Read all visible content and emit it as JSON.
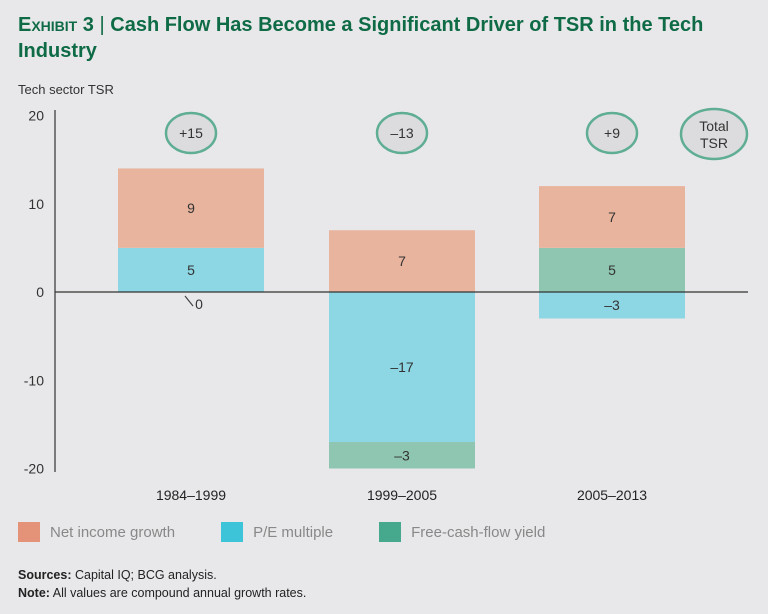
{
  "title": {
    "exhibit": "Exhibit 3",
    "text": "Cash Flow Has Become a Significant Driver of TSR in the Tech Industry"
  },
  "chart_data": {
    "type": "bar",
    "stacked": true,
    "ylabel": "Tech sector TSR",
    "ylim": [
      -20,
      20
    ],
    "yticks": [
      20,
      10,
      0,
      -10,
      -20
    ],
    "categories": [
      "1984–1999",
      "1999–2005",
      "2005–2013"
    ],
    "series": [
      {
        "name": "Net income growth",
        "color": "#e9b49e",
        "legend_color": "#e59378",
        "values": [
          9,
          7,
          7
        ]
      },
      {
        "name": "P/E multiple",
        "color": "#8dd6e3",
        "legend_color": "#3dc4d8",
        "values": [
          5,
          -17,
          -3
        ]
      },
      {
        "name": "Free-cash-flow yield",
        "color": "#8fc6b2",
        "legend_color": "#46a88d",
        "values": [
          0,
          -3,
          5
        ]
      }
    ],
    "stack_order": [
      [
        1,
        0,
        2
      ],
      [
        0,
        1,
        2
      ],
      [
        2,
        0,
        1
      ]
    ],
    "totals": [
      "+15",
      "–13",
      "+9"
    ],
    "totals_label": [
      "Total",
      "TSR"
    ],
    "value_labels": [
      [
        "9",
        "5",
        "0"
      ],
      [
        "7",
        "–17",
        "–3"
      ],
      [
        "7",
        "–3",
        "5"
      ]
    ]
  },
  "notes": {
    "sources_label": "Sources:",
    "sources": " Capital IQ; BCG analysis.",
    "note_label": "Note:",
    "note": " All values are compound annual growth rates."
  }
}
